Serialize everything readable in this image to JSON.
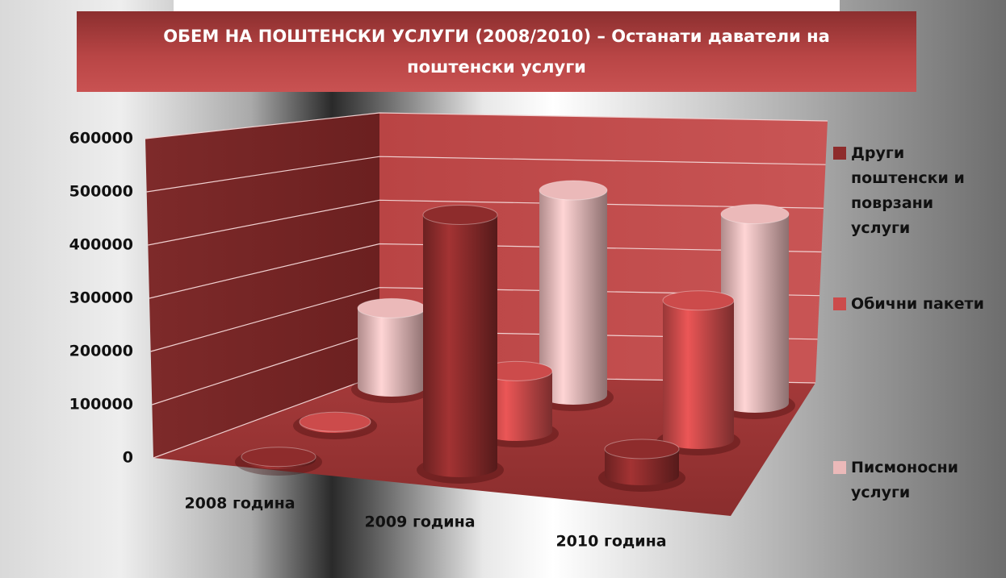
{
  "chart_data": {
    "type": "bar3d",
    "title": "ОБЕМ НА ПОШТЕНСКИ УСЛУГИ (2008/2010) – Останати даватели на поштенски услуги",
    "categories": [
      "2008 година",
      "2009 година",
      "2010 година"
    ],
    "series": [
      {
        "name": "Други поштенски и поврзани услуги",
        "color": "#8e2c2c",
        "values": [
          5000,
          475000,
          50000
        ]
      },
      {
        "name": "Обични пакети",
        "color": "#cc4b4b",
        "values": [
          3000,
          130000,
          300000
        ]
      },
      {
        "name": "Писмоносни услуги",
        "color": "#ebb9b9",
        "values": [
          200000,
          520000,
          480000
        ]
      }
    ],
    "ylim": [
      0,
      600000
    ],
    "yticks": [
      0,
      100000,
      200000,
      300000,
      400000,
      500000,
      600000
    ],
    "grid": true,
    "legend": "right"
  }
}
